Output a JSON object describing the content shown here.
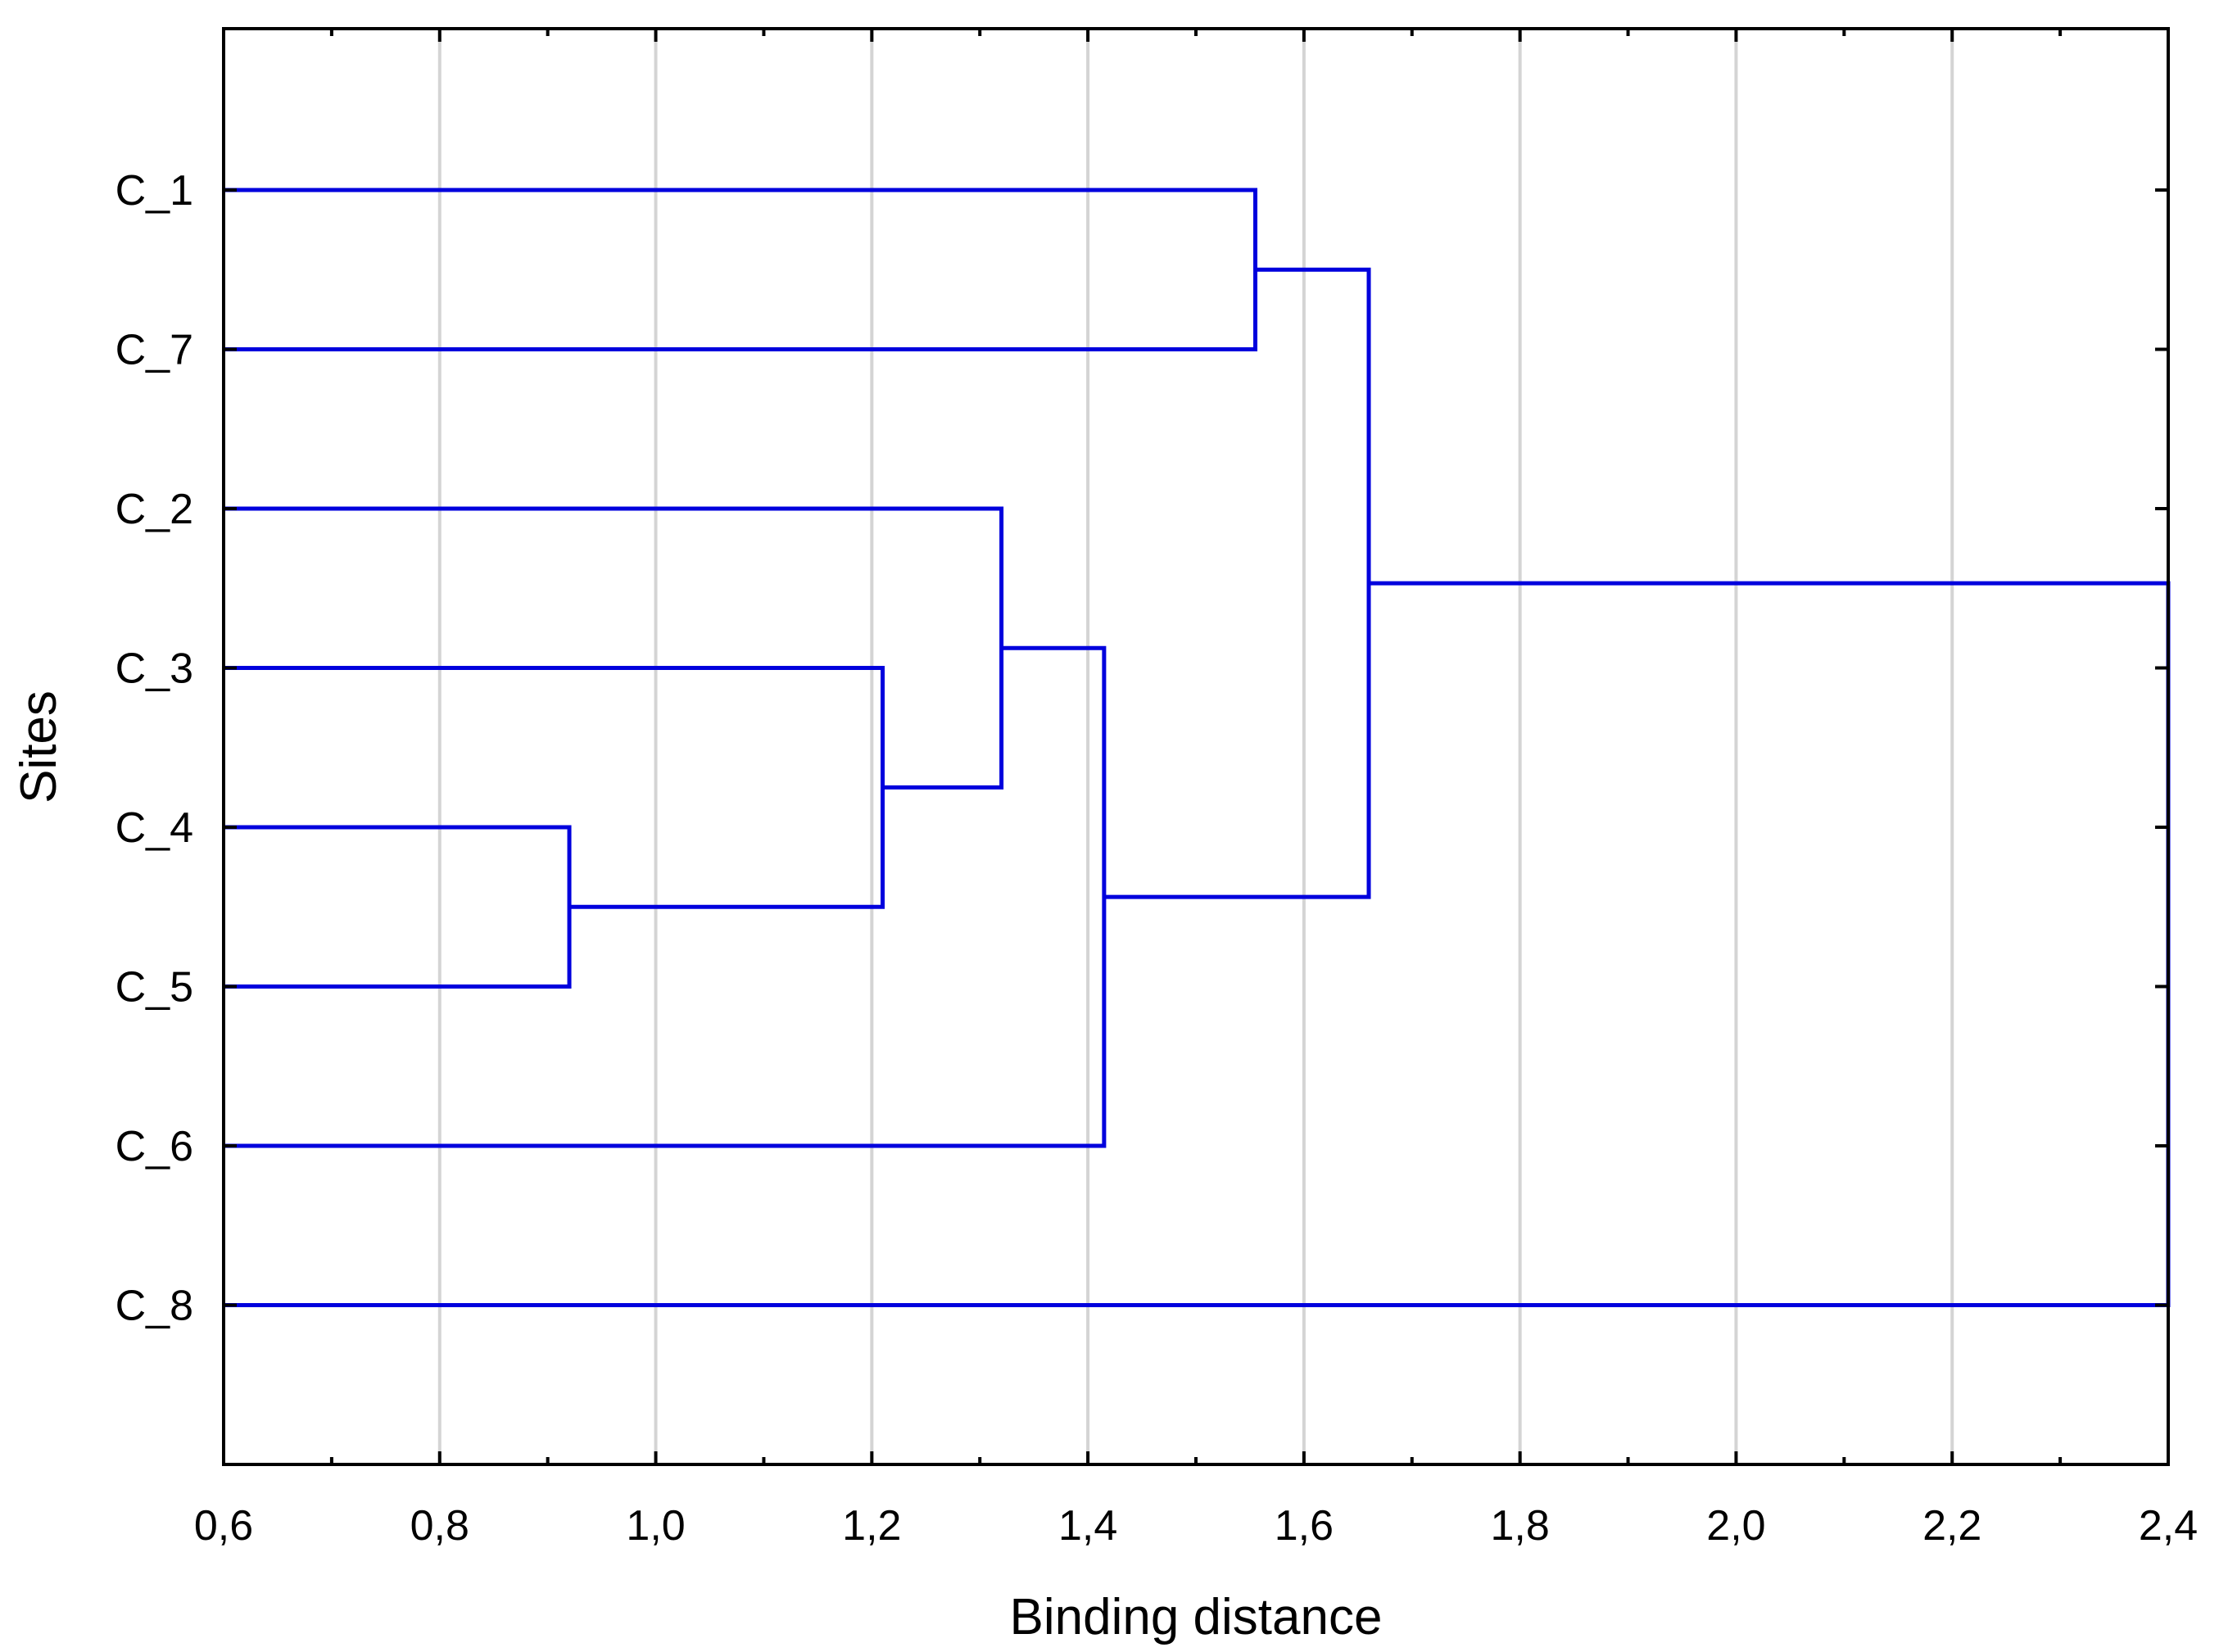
{
  "chart_data": {
    "type": "dendrogram",
    "orientation": "horizontal",
    "xlabel": "Binding distance",
    "ylabel": "Sites",
    "xlim": [
      0.6,
      2.4
    ],
    "x_ticks": [
      0.6,
      0.8,
      1.0,
      1.2,
      1.4,
      1.6,
      1.8,
      2.0,
      2.2,
      2.4
    ],
    "x_tick_labels": [
      "0,6",
      "0,8",
      "1,0",
      "1,2",
      "1,4",
      "1,6",
      "1,8",
      "2,0",
      "2,2",
      "2,4"
    ],
    "leaves": [
      "C_1",
      "C_7",
      "C_2",
      "C_3",
      "C_4",
      "C_5",
      "C_6",
      "C_8"
    ],
    "merges": [
      {
        "id": "m1",
        "left": "C_4",
        "right": "C_5",
        "distance": 0.92
      },
      {
        "id": "m2",
        "left": "C_3",
        "right": "m1",
        "distance": 1.21
      },
      {
        "id": "m3",
        "left": "C_2",
        "right": "m2",
        "distance": 1.32
      },
      {
        "id": "m4",
        "left": "m3",
        "right": "C_6",
        "distance": 1.415
      },
      {
        "id": "m5",
        "left": "C_1",
        "right": "C_7",
        "distance": 1.555
      },
      {
        "id": "m6",
        "left": "m5",
        "right": "m4",
        "distance": 1.66
      },
      {
        "id": "m7",
        "left": "m6",
        "right": "C_8",
        "distance": 2.4
      }
    ],
    "grid": "vertical",
    "colors": {
      "links": "#0000dd",
      "grid": "#d4d4d4",
      "axis": "#000000"
    }
  }
}
